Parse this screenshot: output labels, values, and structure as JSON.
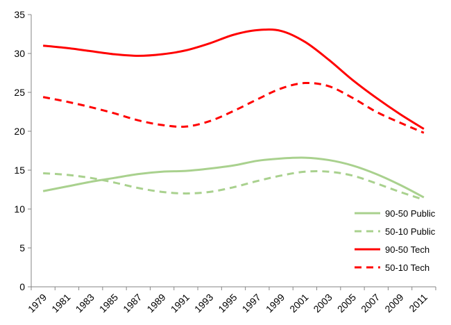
{
  "chart_data": {
    "type": "line",
    "title": "",
    "xlabel": "",
    "ylabel": "",
    "ylim": [
      0,
      35
    ],
    "yticks": [
      0,
      5,
      10,
      15,
      20,
      25,
      30,
      35
    ],
    "xlim": [
      1979,
      2011
    ],
    "xticks": [
      1979,
      1981,
      1983,
      1985,
      1987,
      1989,
      1991,
      1993,
      1995,
      1997,
      1999,
      2001,
      2003,
      2005,
      2007,
      2009,
      2011
    ],
    "grid": false,
    "legend_position": "bottom-right",
    "x": [
      1979,
      1981,
      1983,
      1985,
      1987,
      1989,
      1991,
      1993,
      1995,
      1997,
      1999,
      2001,
      2003,
      2005,
      2007,
      2009,
      2011
    ],
    "series": [
      {
        "name": "90-50 Public",
        "color": "#a9d18e",
        "dash": "solid",
        "values": [
          12.3,
          12.9,
          13.5,
          14.0,
          14.5,
          14.8,
          14.9,
          15.2,
          15.6,
          16.2,
          16.5,
          16.6,
          16.3,
          15.6,
          14.5,
          13.1,
          11.5
        ]
      },
      {
        "name": "50-10 Public",
        "color": "#a9d18e",
        "dash": "dashed",
        "values": [
          14.6,
          14.4,
          14.0,
          13.4,
          12.7,
          12.2,
          12.0,
          12.2,
          12.8,
          13.6,
          14.3,
          14.8,
          14.8,
          14.3,
          13.3,
          12.2,
          11.2
        ]
      },
      {
        "name": "90-50 Tech",
        "color": "#ff0000",
        "dash": "solid",
        "values": [
          31.0,
          30.7,
          30.3,
          29.9,
          29.7,
          29.9,
          30.4,
          31.3,
          32.4,
          33.0,
          32.9,
          31.5,
          29.2,
          26.6,
          24.3,
          22.2,
          20.3
        ]
      },
      {
        "name": "50-10 Tech",
        "color": "#ff0000",
        "dash": "dashed",
        "values": [
          24.4,
          23.8,
          23.1,
          22.3,
          21.4,
          20.8,
          20.6,
          21.3,
          22.6,
          24.1,
          25.5,
          26.2,
          25.8,
          24.3,
          22.5,
          21.1,
          19.8
        ]
      }
    ]
  }
}
